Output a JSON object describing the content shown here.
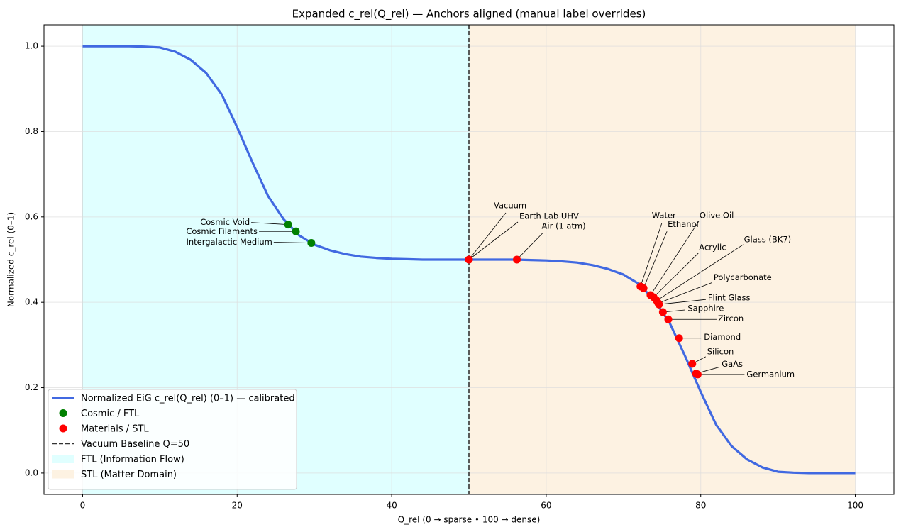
{
  "chart_data": {
    "type": "line",
    "title": "Expanded c_rel(Q_rel) — Anchors aligned (manual label overrides)",
    "xlabel": "Q_rel (0 → sparse • 100 → dense)",
    "ylabel": "Normalized c_rel (0–1)",
    "xlim": [
      -5,
      105
    ],
    "ylim": [
      -0.05,
      1.05
    ],
    "xticks": [
      0,
      20,
      40,
      60,
      80,
      100
    ],
    "yticks": [
      {
        "value": 0,
        "label": "0.0"
      },
      0.2,
      0.4,
      0.6,
      0.8,
      {
        "value": 1,
        "label": "1.0"
      }
    ],
    "grid": true,
    "legend_loc": "lower left",
    "x": [
      0,
      2,
      4,
      6,
      8,
      10,
      12,
      14,
      16,
      18,
      20,
      22,
      24,
      26,
      28,
      30,
      32,
      34,
      36,
      38,
      40,
      42,
      44,
      46,
      48,
      50,
      52,
      54,
      56,
      58,
      60,
      62,
      64,
      66,
      68,
      70,
      72,
      74,
      76,
      78,
      80,
      82,
      84,
      86,
      88,
      90,
      92,
      94,
      96,
      98,
      100
    ],
    "series": [
      {
        "name": "Normalized EiG c_rel(Q_rel) (0–1) — calibrated",
        "color": "#4169e1",
        "values": [
          1,
          1,
          1,
          1,
          0.999,
          0.997,
          0.987,
          0.968,
          0.937,
          0.887,
          0.81,
          0.727,
          0.649,
          0.595,
          0.557,
          0.535,
          0.522,
          0.513,
          0.507,
          0.504,
          0.502,
          0.501,
          0.5,
          0.5,
          0.5,
          0.5,
          0.5,
          0.5,
          0.5,
          0.499,
          0.498,
          0.496,
          0.493,
          0.487,
          0.478,
          0.465,
          0.443,
          0.405,
          0.351,
          0.273,
          0.19,
          0.113,
          0.063,
          0.032,
          0.013,
          0.003,
          0.001,
          0,
          0,
          0,
          0
        ]
      }
    ],
    "points": [
      {
        "name": "Cosmic / FTL",
        "color": "#008000",
        "labels": [
          "Cosmic Void",
          "Cosmic Filaments",
          "Intergalactic Medium"
        ],
        "x": [
          26.6,
          27.6,
          29.6
        ],
        "values": [
          0.582,
          0.566,
          0.539
        ]
      },
      {
        "name": "Materials / STL",
        "color": "#ff0000",
        "labels": [
          "Vacuum",
          "Earth Lab UHV",
          "Air (1 atm)",
          "Water",
          "Ethanol",
          "Olive Oil",
          "Acrylic",
          "Glass (BK7)",
          "Polycarbonate",
          "Flint Glass",
          "Sapphire",
          "Zircon",
          "Diamond",
          "Silicon",
          "GaAs",
          "Germanium"
        ],
        "x": [
          50,
          50,
          56.2,
          72.2,
          72.6,
          73.5,
          73.9,
          74.3,
          74.5,
          74.6,
          75.1,
          75.8,
          77.2,
          78.9,
          79.4,
          79.6
        ],
        "values": [
          0.5,
          0.5,
          0.5,
          0.437,
          0.433,
          0.417,
          0.412,
          0.404,
          0.398,
          0.395,
          0.377,
          0.36,
          0.316,
          0.256,
          0.233,
          0.231
        ]
      }
    ],
    "vline": {
      "name": "Vacuum Baseline Q=50",
      "x": 50,
      "color": "#333333"
    },
    "spans": [
      {
        "name": "FTL (Information Flow)",
        "from": 0,
        "to": 50,
        "color": "#e0ffff"
      },
      {
        "name": "STL (Matter Domain)",
        "from": 50,
        "to": 100,
        "color": "#fdf2e2"
      }
    ]
  }
}
